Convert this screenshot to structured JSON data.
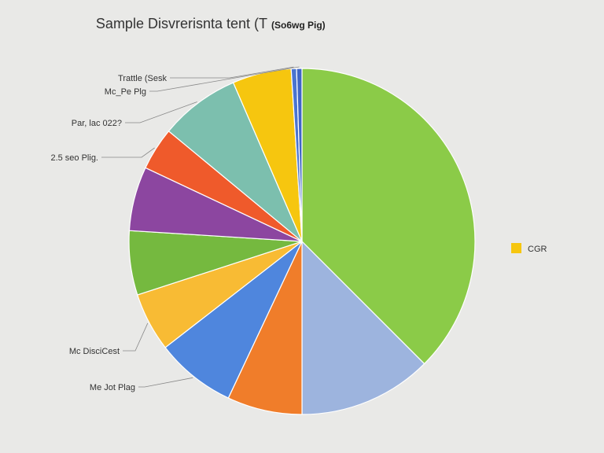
{
  "chart_data": {
    "type": "pie",
    "title": "Sample Disvrerisnta tent (T",
    "subtitle": "(So6wg Pig)",
    "start_angle_deg": 0,
    "direction": "clockwise",
    "slices": [
      {
        "label": "",
        "value": 37.5,
        "color": "#8bcb48"
      },
      {
        "label": "",
        "value": 12.5,
        "color": "#9db4de"
      },
      {
        "label": "",
        "value": 7.0,
        "color": "#f07d2a"
      },
      {
        "label": "Me Jot Plag",
        "value": 7.5,
        "color": "#4f86dd"
      },
      {
        "label": "Mc DisciCest",
        "value": 5.5,
        "color": "#f8bb34"
      },
      {
        "label": "",
        "value": 6.0,
        "color": "#75b93f"
      },
      {
        "label": "",
        "value": 6.0,
        "color": "#8c46a0"
      },
      {
        "label": "2.5 seo Plig.",
        "value": 4.0,
        "color": "#ef5a2b"
      },
      {
        "label": "Par, lac 022?",
        "value": 7.5,
        "color": "#7cbfae"
      },
      {
        "label": "",
        "value": 5.5,
        "color": "#f6c60f"
      },
      {
        "label": "Trattle (Sesk",
        "value": 0.5,
        "color": "#4a74d0"
      },
      {
        "label": "Mc_Pe Plg",
        "value": 0.5,
        "color": "#3f66c6"
      }
    ],
    "legend": [
      {
        "label": "CGR",
        "color": "#f6c60f"
      }
    ],
    "legend_position": "right"
  }
}
